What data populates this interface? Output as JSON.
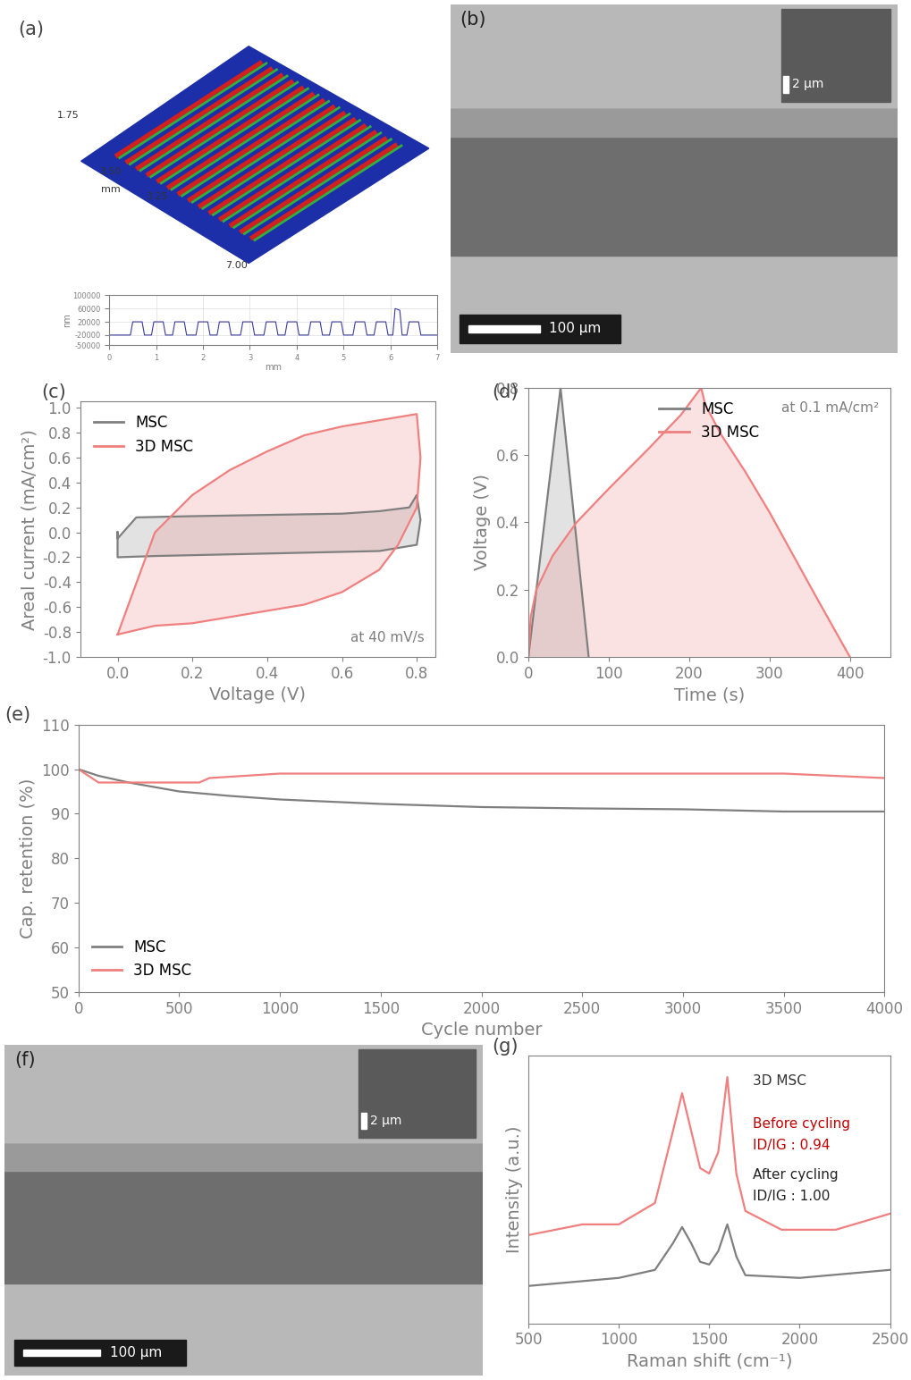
{
  "chart_data": [
    {
      "type": "line",
      "xlabel": "mm",
      "ylabel": "nm",
      "xlim": [
        0,
        7
      ],
      "xticks": [
        0,
        1,
        2,
        3,
        4,
        5,
        6,
        7
      ],
      "ylim": [
        -50000,
        100000
      ],
      "yticks": [
        -50000,
        -20000,
        20000,
        60000,
        100000
      ],
      "series": [
        {
          "color": "#3a3aa0",
          "x": [
            0,
            0.45,
            0.5,
            0.7,
            0.75,
            0.9,
            0.95,
            1.15,
            1.2,
            1.35,
            1.4,
            1.6,
            1.65,
            1.85,
            1.9,
            2.1,
            2.15,
            2.3,
            2.35,
            2.55,
            2.6,
            2.8,
            2.85,
            3.05,
            3.1,
            3.3,
            3.35,
            3.55,
            3.6,
            3.75,
            3.8,
            4.0,
            4.05,
            4.25,
            4.3,
            4.5,
            4.55,
            4.7,
            4.75,
            4.95,
            5.0,
            5.2,
            5.25,
            5.45,
            5.5,
            5.65,
            5.7,
            5.9,
            5.95,
            6.05,
            6.1,
            6.2,
            6.25,
            6.35,
            6.4,
            6.6,
            6.65,
            7
          ],
          "values": [
            -20000,
            -20000,
            20000,
            20000,
            -20000,
            -20000,
            20000,
            20000,
            -20000,
            -20000,
            20000,
            20000,
            -20000,
            -20000,
            20000,
            20000,
            -20000,
            -20000,
            20000,
            20000,
            -20000,
            -20000,
            20000,
            20000,
            -20000,
            -20000,
            20000,
            20000,
            -20000,
            -20000,
            20000,
            20000,
            -20000,
            -20000,
            20000,
            20000,
            -20000,
            -20000,
            20000,
            20000,
            -20000,
            -20000,
            20000,
            20000,
            -20000,
            -20000,
            20000,
            20000,
            -20000,
            -20000,
            60000,
            55000,
            -20000,
            -20000,
            20000,
            20000,
            -20000,
            -20000
          ]
        }
      ]
    },
    {
      "type": "area",
      "label": "(c)",
      "xlabel": "Voltage (V)",
      "ylabel": "Areal current (mA/cm²)",
      "xlim": [
        -0.1,
        0.85
      ],
      "xticks": [
        0.0,
        0.2,
        0.4,
        0.6,
        0.8
      ],
      "ylim": [
        -1.0,
        1.05
      ],
      "yticks": [
        -1.0,
        -0.8,
        -0.6,
        -0.4,
        -0.2,
        0.0,
        0.2,
        0.4,
        0.6,
        0.8,
        1.0
      ],
      "legend": "upper left",
      "annotations": [
        "at 40 mV/s"
      ],
      "series": [
        {
          "name": "MSC",
          "color": "#7f7f7f",
          "x": [
            0.0,
            0.0,
            0.05,
            0.2,
            0.4,
            0.6,
            0.7,
            0.78,
            0.8,
            0.81,
            0.8,
            0.7,
            0.4,
            0.1,
            0.0,
            0.0
          ],
          "values": [
            0.0,
            -0.05,
            0.12,
            0.13,
            0.14,
            0.15,
            0.17,
            0.2,
            0.3,
            0.1,
            -0.1,
            -0.15,
            -0.17,
            -0.19,
            -0.2,
            0.0
          ]
        },
        {
          "name": "3D MSC",
          "color": "#f07f7f",
          "x": [
            0.0,
            0.1,
            0.2,
            0.3,
            0.4,
            0.5,
            0.6,
            0.7,
            0.8,
            0.81,
            0.8,
            0.75,
            0.7,
            0.6,
            0.5,
            0.4,
            0.3,
            0.2,
            0.1,
            0.0
          ],
          "values": [
            -0.82,
            0.0,
            0.3,
            0.5,
            0.65,
            0.78,
            0.85,
            0.9,
            0.95,
            0.6,
            0.2,
            -0.1,
            -0.3,
            -0.48,
            -0.58,
            -0.63,
            -0.68,
            -0.73,
            -0.75,
            -0.82
          ]
        }
      ]
    },
    {
      "type": "area",
      "label": "(d)",
      "xlabel": "Time (s)",
      "ylabel": "Voltage (V)",
      "xlim": [
        0,
        450
      ],
      "xticks": [
        0,
        100,
        200,
        300,
        400
      ],
      "ylim": [
        0.0,
        0.8
      ],
      "yticks": [
        0.0,
        0.2,
        0.4,
        0.6,
        0.8
      ],
      "legend": "upper center",
      "annotations": [
        "at 0.1 mA/cm²"
      ],
      "series": [
        {
          "name": "MSC",
          "color": "#7f7f7f",
          "x": [
            0,
            5,
            40,
            75
          ],
          "values": [
            0.0,
            0.1,
            0.8,
            0.0
          ]
        },
        {
          "name": "3D MSC",
          "color": "#f07f7f",
          "x": [
            0,
            3,
            10,
            30,
            60,
            100,
            150,
            190,
            215,
            220,
            240,
            270,
            300,
            330,
            360,
            400
          ],
          "values": [
            0.0,
            0.12,
            0.2,
            0.3,
            0.4,
            0.5,
            0.62,
            0.72,
            0.8,
            0.75,
            0.66,
            0.55,
            0.43,
            0.3,
            0.17,
            0.0
          ]
        }
      ]
    },
    {
      "type": "line",
      "label": "(e)",
      "xlabel": "Cycle number",
      "ylabel": "Cap. retention (%)",
      "xlim": [
        0,
        4000
      ],
      "xticks": [
        0,
        500,
        1000,
        1500,
        2000,
        2500,
        3000,
        3500,
        4000
      ],
      "ylim": [
        50,
        110
      ],
      "yticks": [
        50,
        60,
        70,
        80,
        90,
        100,
        110
      ],
      "legend": "lower left",
      "series": [
        {
          "name": "MSC",
          "color": "#7f7f7f",
          "x": [
            0,
            100,
            250,
            500,
            750,
            1000,
            1500,
            2000,
            2500,
            3000,
            3500,
            4000
          ],
          "values": [
            100,
            98.5,
            97,
            95,
            94,
            93.2,
            92.2,
            91.5,
            91.2,
            91,
            90.5,
            90.5
          ]
        },
        {
          "name": "3D MSC",
          "color": "#f07f7f",
          "x": [
            0,
            100,
            300,
            600,
            650,
            1000,
            1500,
            2000,
            2500,
            3000,
            3500,
            4000
          ],
          "values": [
            100,
            97,
            97,
            97,
            98,
            99,
            99,
            99,
            99,
            99,
            99,
            98
          ]
        }
      ]
    },
    {
      "type": "line",
      "label": "(g)",
      "xlabel": "Raman shift (cm⁻¹)",
      "ylabel": "Intensity (a.u.)",
      "xlim": [
        500,
        2500
      ],
      "xticks": [
        500,
        1000,
        1500,
        2000,
        2500
      ],
      "ylim": [
        0,
        1
      ],
      "tick_labels": "x",
      "annotations": [
        "3D MSC",
        "Before cycling",
        "ID/IG : 0.94",
        "After cycling",
        "ID/IG : 1.00"
      ],
      "series": [
        {
          "color": "#f07f7f",
          "x": [
            500,
            800,
            1000,
            1200,
            1300,
            1350,
            1400,
            1450,
            1500,
            1550,
            1600,
            1650,
            1700,
            1900,
            2200,
            2500
          ],
          "values": [
            0.33,
            0.37,
            0.37,
            0.45,
            0.72,
            0.86,
            0.72,
            0.58,
            0.56,
            0.64,
            0.92,
            0.56,
            0.42,
            0.35,
            0.35,
            0.41
          ]
        },
        {
          "color": "#7f7f7f",
          "x": [
            500,
            1000,
            1200,
            1300,
            1350,
            1400,
            1450,
            1500,
            1550,
            1600,
            1650,
            1700,
            2000,
            2500
          ],
          "values": [
            0.14,
            0.17,
            0.2,
            0.3,
            0.36,
            0.3,
            0.23,
            0.22,
            0.27,
            0.37,
            0.25,
            0.18,
            0.17,
            0.2
          ]
        }
      ]
    }
  ],
  "images": [
    {
      "label": "(a)",
      "axis_texts": [
        "1.75",
        "3.50",
        "3.25",
        "7.00",
        "mm"
      ]
    },
    {
      "label": "(b)",
      "scale_bar": "100 μm",
      "inset_scale_bar": "2 μm"
    },
    {
      "label": "(f)",
      "scale_bar": "100 μm",
      "inset_scale_bar": "2 μm"
    }
  ]
}
